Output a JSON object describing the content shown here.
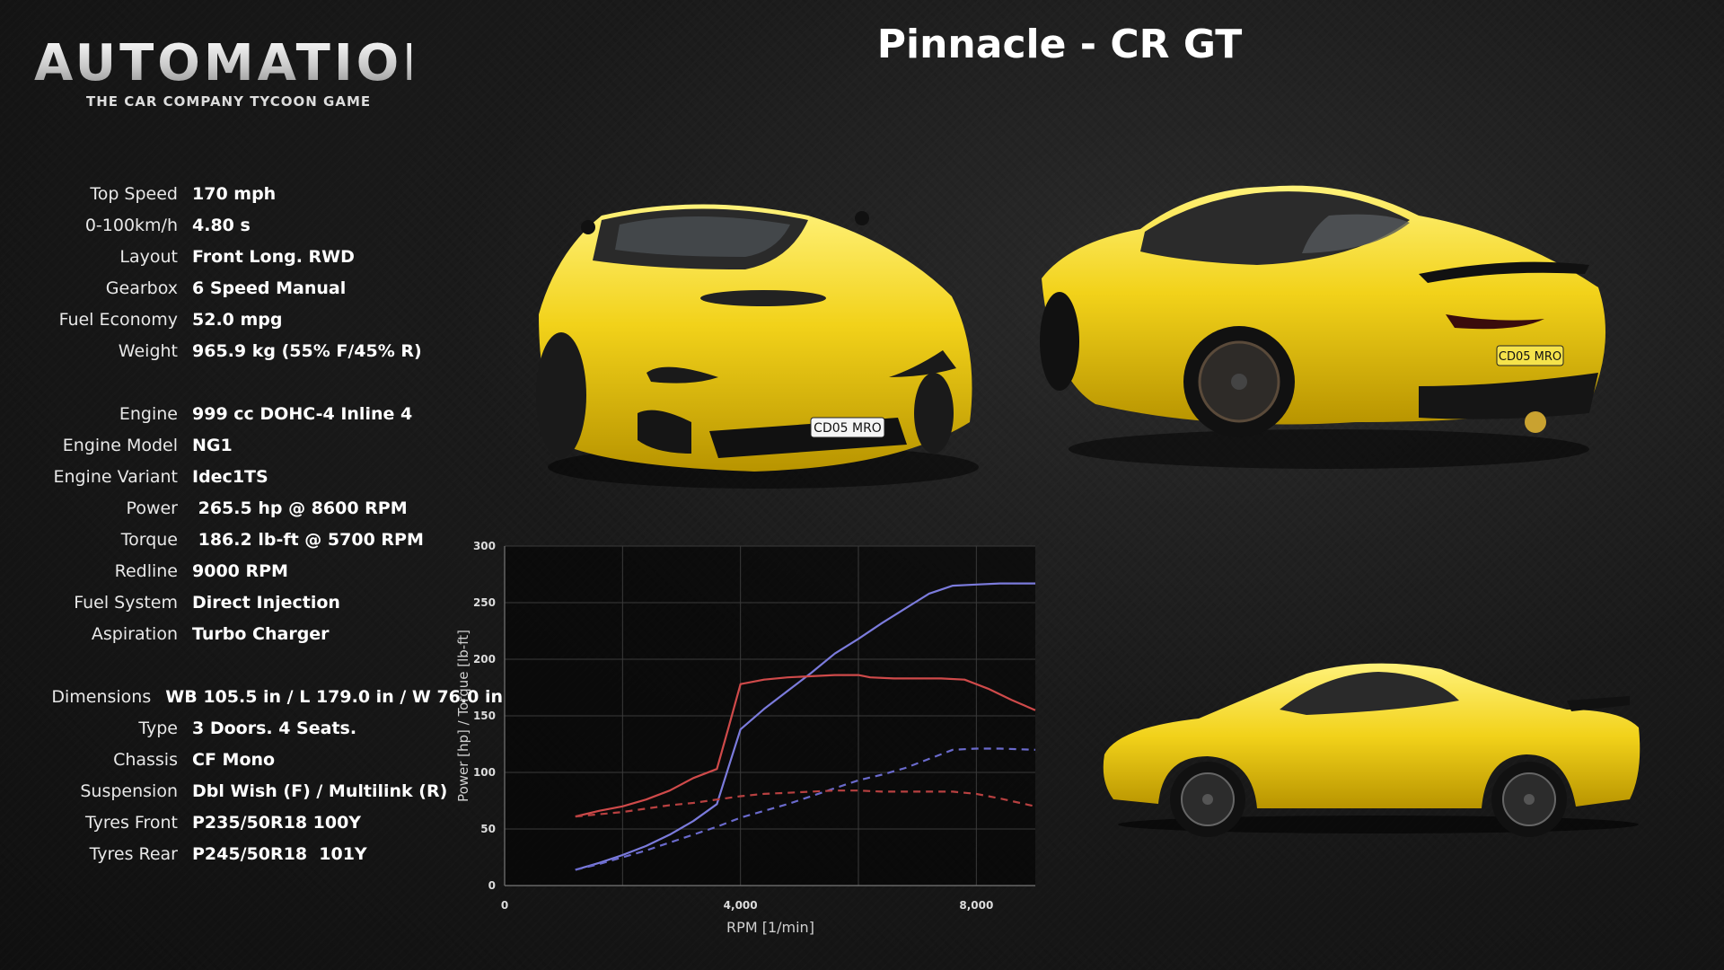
{
  "logo": {
    "word": "AUTOMATION",
    "subtitle": "THE CAR COMPANY TYCOON GAME"
  },
  "title": "Pinnacle - CR GT",
  "specs": [
    {
      "label": "Top Speed",
      "value": "170 mph"
    },
    {
      "label": "0-100km/h",
      "value": "4.80 s"
    },
    {
      "label": "Layout",
      "value": "Front Long. RWD"
    },
    {
      "label": "Gearbox",
      "value": "6 Speed Manual"
    },
    {
      "label": "Fuel Economy",
      "value": "52.0 mpg"
    },
    {
      "label": "Weight",
      "value": "965.9 kg (55% F/45% R)"
    },
    {
      "label": "Engine",
      "value": "999 cc DOHC-4 Inline 4"
    },
    {
      "label": "Engine Model",
      "value": "NG1"
    },
    {
      "label": "Engine Variant",
      "value": "Idec1TS"
    },
    {
      "label": "Power",
      "value": " 265.5 hp @ 8600 RPM"
    },
    {
      "label": "Torque",
      "value": " 186.2 lb-ft @ 5700 RPM"
    },
    {
      "label": "Redline",
      "value": "9000 RPM"
    },
    {
      "label": "Fuel System",
      "value": "Direct Injection"
    },
    {
      "label": "Aspiration",
      "value": "Turbo Charger"
    },
    {
      "label": "Dimensions",
      "value": "WB 105.5 in / L 179.0 in / W 76.0 in"
    },
    {
      "label": "Type",
      "value": "3 Doors. 4 Seats."
    },
    {
      "label": "Chassis",
      "value": "CF Mono"
    },
    {
      "label": "Suspension",
      "value": "Dbl Wish (F) / Multilink (R)"
    },
    {
      "label": "Tyres Front",
      "value": "P235/50R18 100Y"
    },
    {
      "label": "Tyres Rear",
      "value": "P245/50R18  101Y"
    }
  ],
  "plates": {
    "front": "CD05 MRO",
    "rear": "CD05 MRO"
  },
  "colors": {
    "car_yellow": "#f2d21a",
    "power": "#7b7bdc",
    "torque": "#cf4a4a",
    "background": "#1a1a1a"
  },
  "chart_data": {
    "type": "line",
    "xlabel": "RPM [1/min]",
    "ylabel": "Power [hp] / Torque [lb-ft]",
    "xlim": [
      0,
      9000
    ],
    "ylim": [
      0,
      300
    ],
    "xticks": [
      "0",
      "4,000",
      "8,000"
    ],
    "yticks": [
      "0",
      "50",
      "100",
      "150",
      "200",
      "250",
      "300"
    ],
    "grid": true,
    "series": [
      {
        "key": "power",
        "style": "solid",
        "color": "#7b7bdc",
        "x": [
          1200,
          1600,
          2000,
          2400,
          2800,
          3200,
          3600,
          3800,
          4000,
          4400,
          4800,
          5200,
          5600,
          6000,
          6400,
          6800,
          7200,
          7600,
          8000,
          8400,
          9000
        ],
        "y": [
          14,
          20,
          27,
          35,
          45,
          57,
          72,
          105,
          138,
          156,
          172,
          188,
          205,
          218,
          232,
          245,
          258,
          265,
          266,
          267,
          267
        ]
      },
      {
        "key": "torque",
        "style": "solid",
        "color": "#cf4a4a",
        "x": [
          1200,
          1600,
          2000,
          2400,
          2800,
          3200,
          3600,
          3800,
          4000,
          4400,
          4800,
          5200,
          5600,
          6000,
          6200,
          6600,
          7000,
          7400,
          7800,
          8200,
          8600,
          9000
        ],
        "y": [
          61,
          66,
          70,
          76,
          84,
          95,
          103,
          140,
          178,
          182,
          184,
          185,
          186,
          186,
          184,
          183,
          183,
          183,
          182,
          174,
          164,
          155
        ]
      },
      {
        "key": "power-economy",
        "style": "dashed",
        "color": "#6a6acc",
        "x": [
          1200,
          1600,
          2000,
          2400,
          2800,
          3200,
          3600,
          4000,
          4400,
          4800,
          5200,
          5600,
          6000,
          6400,
          6800,
          7200,
          7600,
          8000,
          8400,
          9000
        ],
        "y": [
          14,
          19,
          25,
          31,
          38,
          45,
          52,
          60,
          66,
          72,
          79,
          86,
          93,
          98,
          104,
          112,
          120,
          121,
          121,
          120
        ]
      },
      {
        "key": "torque-economy",
        "style": "dashed",
        "color": "#b84040",
        "x": [
          1200,
          1600,
          2000,
          2400,
          2800,
          3200,
          3600,
          4000,
          4400,
          4800,
          5200,
          5600,
          6000,
          6400,
          6800,
          7200,
          7600,
          8000,
          8400,
          9000
        ],
        "y": [
          61,
          63,
          65,
          68,
          71,
          73,
          76,
          79,
          81,
          82,
          83,
          84,
          84,
          83,
          83,
          83,
          83,
          81,
          77,
          70
        ]
      }
    ]
  }
}
